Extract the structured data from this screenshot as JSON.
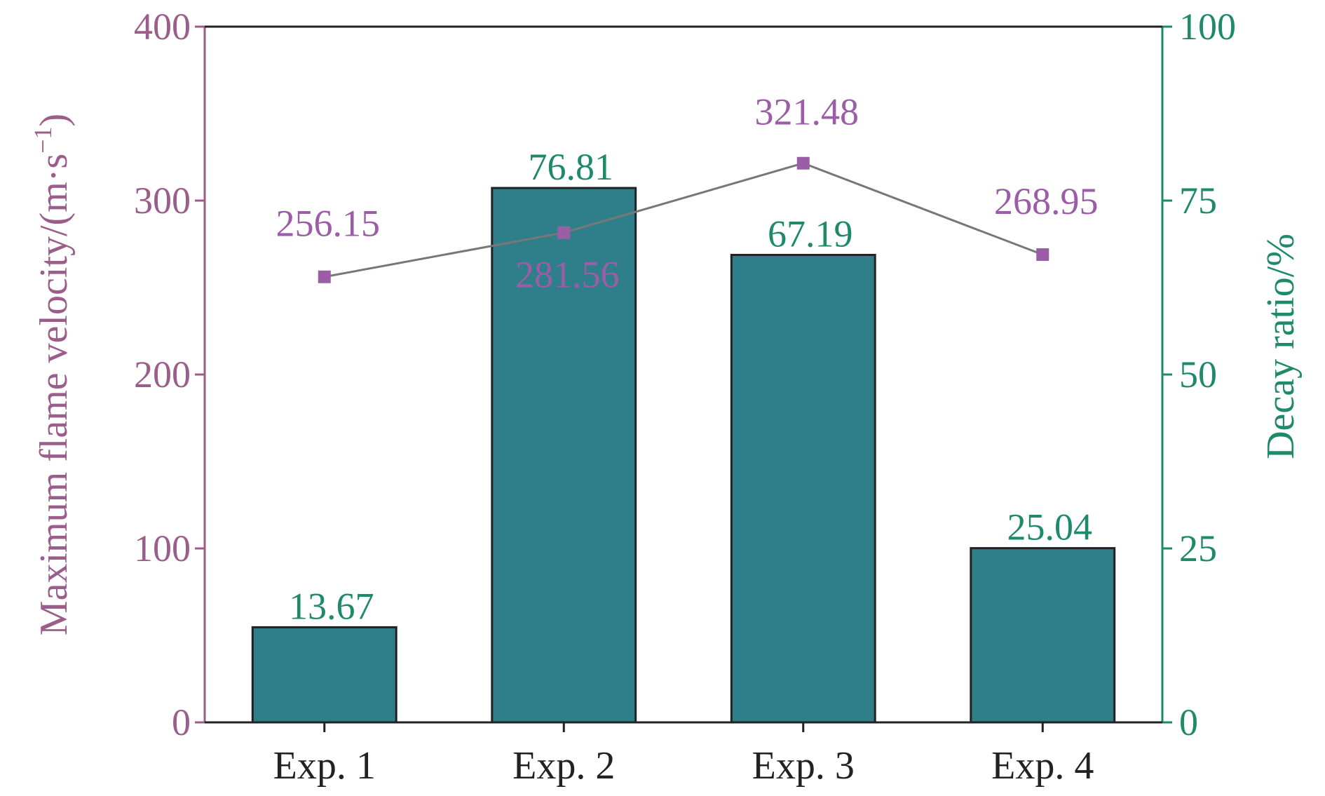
{
  "chart_data": {
    "type": "bar",
    "categories": [
      "Exp. 1",
      "Exp. 2",
      "Exp. 3",
      "Exp. 4"
    ],
    "series": [
      {
        "chart_type": "line",
        "axis": "left",
        "values": [
          256.15,
          281.56,
          321.48,
          268.95
        ],
        "labels": [
          "256.15",
          "281.56",
          "321.48",
          "268.95"
        ],
        "color": "#9b5da6"
      },
      {
        "chart_type": "bar",
        "axis": "right",
        "values": [
          13.67,
          76.81,
          67.19,
          25.04
        ],
        "labels": [
          "13.67",
          "76.81",
          "67.19",
          "25.04"
        ],
        "color": "#2e7f8a"
      }
    ],
    "left_axis": {
      "label": "Maximum flame velocity/(m·s",
      "label_sup": "−1",
      "label_end": ")",
      "ylim": [
        0,
        400
      ],
      "ticks": [
        "0",
        "100",
        "200",
        "300",
        "400"
      ],
      "color": "#9b5d8a"
    },
    "right_axis": {
      "label": "Decay ratio/%",
      "ylim": [
        0,
        100
      ],
      "ticks": [
        "0",
        "25",
        "50",
        "75",
        "100"
      ],
      "color": "#1f8a6a"
    },
    "line_color": "#777777",
    "bar_edge_color": "#222222",
    "grid": false,
    "legend": "none"
  }
}
